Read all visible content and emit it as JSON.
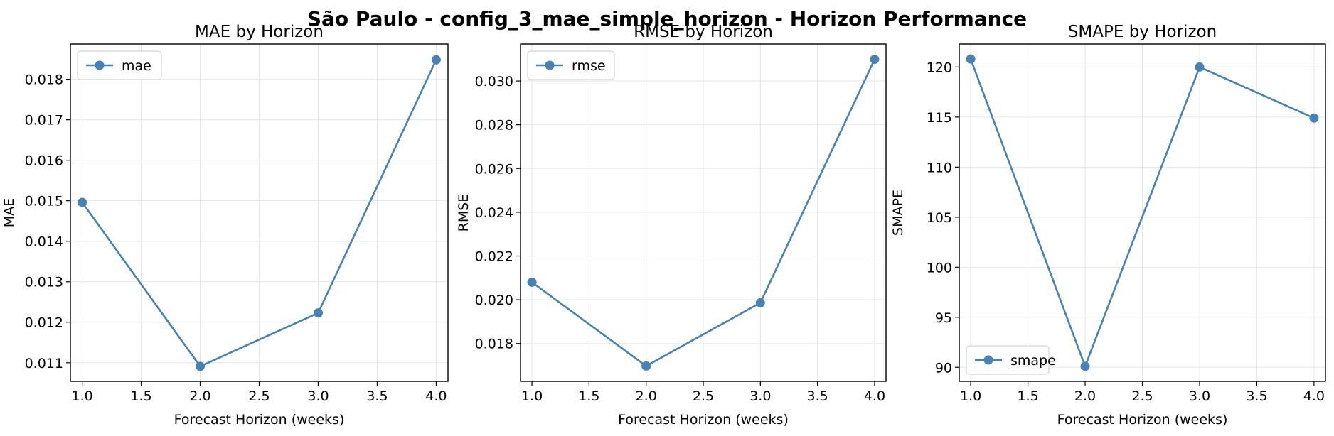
{
  "suptitle": "São Paulo - config_3_mae_simple_horizon - Horizon Performance",
  "colors": {
    "line": "#4682b4",
    "grid": "#e6e6e6",
    "axes": "#000000",
    "legend_border": "#cccccc"
  },
  "chart_data": [
    {
      "type": "line",
      "title": "MAE by Horizon",
      "xlabel": "Forecast Horizon (weeks)",
      "ylabel": "MAE",
      "x": [
        1.0,
        2.0,
        3.0,
        4.0
      ],
      "series": [
        {
          "name": "mae",
          "values": [
            0.01496,
            0.01091,
            0.01223,
            0.01848
          ]
        }
      ],
      "xlim": [
        0.9,
        4.1
      ],
      "ylim": [
        0.01054,
        0.01887
      ],
      "xticks": [
        1.0,
        1.5,
        2.0,
        2.5,
        3.0,
        3.5,
        4.0
      ],
      "xtick_labels": [
        "1.0",
        "1.5",
        "2.0",
        "2.5",
        "3.0",
        "3.5",
        "4.0"
      ],
      "yticks": [
        0.011,
        0.012,
        0.013,
        0.014,
        0.015,
        0.016,
        0.017,
        0.018
      ],
      "ytick_labels": [
        "0.011",
        "0.012",
        "0.013",
        "0.014",
        "0.015",
        "0.016",
        "0.017",
        "0.018"
      ],
      "grid": true,
      "legend_position": "upper left"
    },
    {
      "type": "line",
      "title": "RMSE by Horizon",
      "xlabel": "Forecast Horizon (weeks)",
      "ylabel": "RMSE",
      "x": [
        1.0,
        2.0,
        3.0,
        4.0
      ],
      "series": [
        {
          "name": "rmse",
          "values": [
            0.0208,
            0.01697,
            0.01986,
            0.03099
          ]
        }
      ],
      "xlim": [
        0.9,
        4.1
      ],
      "ylim": [
        0.01627,
        0.03169
      ],
      "xticks": [
        1.0,
        1.5,
        2.0,
        2.5,
        3.0,
        3.5,
        4.0
      ],
      "xtick_labels": [
        "1.0",
        "1.5",
        "2.0",
        "2.5",
        "3.0",
        "3.5",
        "4.0"
      ],
      "yticks": [
        0.018,
        0.02,
        0.022,
        0.024,
        0.026,
        0.028,
        0.03
      ],
      "ytick_labels": [
        "0.018",
        "0.020",
        "0.022",
        "0.024",
        "0.026",
        "0.028",
        "0.030"
      ],
      "grid": true,
      "legend_position": "upper left"
    },
    {
      "type": "line",
      "title": "SMAPE by Horizon",
      "xlabel": "Forecast Horizon (weeks)",
      "ylabel": "SMAPE",
      "x": [
        1.0,
        2.0,
        3.0,
        4.0
      ],
      "series": [
        {
          "name": "smape",
          "values": [
            120.8,
            90.1,
            120.0,
            114.9
          ]
        }
      ],
      "xlim": [
        0.9,
        4.1
      ],
      "ylim": [
        88.6,
        122.3
      ],
      "xticks": [
        1.0,
        1.5,
        2.0,
        2.5,
        3.0,
        3.5,
        4.0
      ],
      "xtick_labels": [
        "1.0",
        "1.5",
        "2.0",
        "2.5",
        "3.0",
        "3.5",
        "4.0"
      ],
      "yticks": [
        90,
        95,
        100,
        105,
        110,
        115,
        120
      ],
      "ytick_labels": [
        "90",
        "95",
        "100",
        "105",
        "110",
        "115",
        "120"
      ],
      "grid": true,
      "legend_position": "lower left"
    }
  ]
}
